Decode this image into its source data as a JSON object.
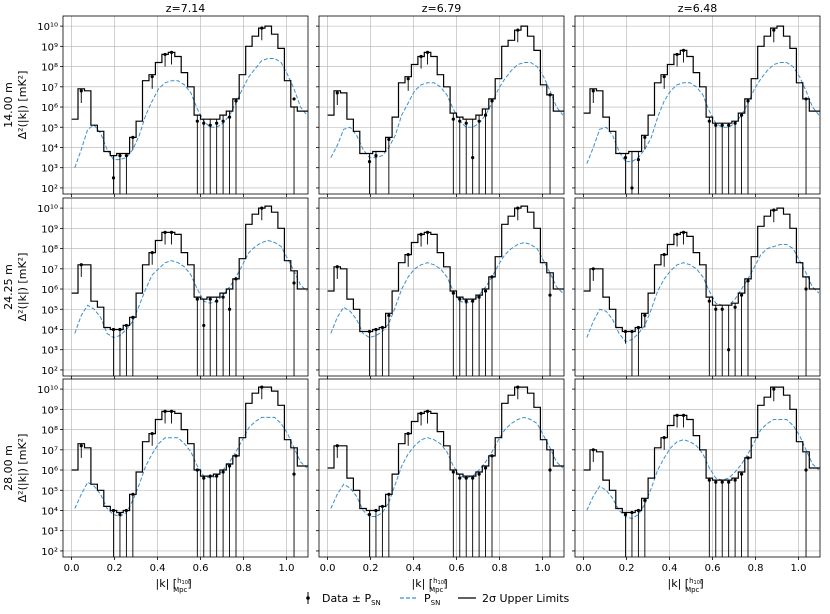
{
  "legend": {
    "items": [
      {
        "label": "Data ± P",
        "sub": "SN",
        "marker": "errorbar-point",
        "color": "#000000"
      },
      {
        "label": "P",
        "sub": "SN",
        "marker": "dashed-line",
        "color": "#3a8fd1"
      },
      {
        "label": "2σ Upper Limits",
        "sub": "",
        "marker": "solid-line",
        "color": "#000000"
      }
    ]
  },
  "chart_data": {
    "type": "line",
    "layout": "grid 3x3",
    "columns": [
      "z=7.14",
      "z=6.79",
      "z=6.48"
    ],
    "rows": [
      "14.00 m",
      "24.25 m",
      "28.00 m"
    ],
    "ylabel": "Δ²(|k|) [mK²]",
    "xlabel": "|k| [h100/Mpc]",
    "xlabel_main": "|k| [",
    "xlabel_num": "h",
    "xlabel_num_sub": "100",
    "xlabel_den": "Mpc",
    "xlabel_close": "]",
    "xlim": [
      -0.04,
      1.1
    ],
    "ylim_log10": [
      1.7,
      10.5
    ],
    "yscale": "log",
    "grid": true,
    "legend_position": "bottom-center",
    "xticks": [
      "0.0",
      "0.2",
      "0.4",
      "0.6",
      "0.8",
      "1.0"
    ],
    "yticks": [
      "10²",
      "10³",
      "10⁴",
      "10⁵",
      "10⁶",
      "10⁷",
      "10⁸",
      "10⁹",
      "10¹⁰"
    ],
    "colors": {
      "upper_limits": "#000000",
      "noise": "#3a8fd1",
      "data": "#000000"
    },
    "k_bins": [
      0.0,
      0.03,
      0.06,
      0.09,
      0.12,
      0.15,
      0.18,
      0.21,
      0.24,
      0.27,
      0.3,
      0.33,
      0.36,
      0.39,
      0.42,
      0.45,
      0.48,
      0.51,
      0.54,
      0.57,
      0.6,
      0.63,
      0.66,
      0.69,
      0.72,
      0.75,
      0.78,
      0.81,
      0.84,
      0.87,
      0.9,
      0.93,
      0.96,
      0.99,
      1.02,
      1.05,
      1.08
    ],
    "panels": [
      {
        "row": 0,
        "col": 0,
        "upper_limits_log10": [
          5.4,
          6.9,
          6.8,
          5.1,
          4.8,
          3.8,
          3.6,
          3.7,
          3.7,
          4.5,
          5.3,
          7.3,
          7.6,
          8.2,
          8.6,
          8.7,
          8.5,
          7.7,
          7.0,
          5.6,
          5.4,
          5.4,
          5.4,
          5.6,
          5.8,
          6.4,
          7.6,
          9.0,
          9.5,
          9.9,
          10.0,
          9.6,
          8.9,
          7.3,
          6.0,
          5.8,
          5.8
        ],
        "noise_log10": [
          3.0,
          3.9,
          4.9,
          5.1,
          4.7,
          3.9,
          3.4,
          3.4,
          3.5,
          3.9,
          4.6,
          5.6,
          6.3,
          6.9,
          7.2,
          7.3,
          7.3,
          7.1,
          6.7,
          5.9,
          5.3,
          5.0,
          5.0,
          5.2,
          5.6,
          6.2,
          6.9,
          7.5,
          7.9,
          8.3,
          8.4,
          8.4,
          8.2,
          7.6,
          6.9,
          6.0,
          5.6
        ],
        "data_log10": [
          null,
          6.8,
          null,
          null,
          null,
          null,
          2.5,
          3.6,
          3.6,
          4.5,
          null,
          null,
          7.5,
          null,
          8.6,
          8.7,
          null,
          null,
          null,
          5.3,
          5.2,
          5.1,
          5.2,
          5.3,
          5.5,
          6.3,
          null,
          null,
          null,
          9.9,
          null,
          null,
          null,
          null,
          6.4,
          null,
          null
        ]
      },
      {
        "row": 0,
        "col": 1,
        "upper_limits_log10": [
          5.6,
          6.8,
          6.7,
          5.4,
          4.8,
          3.7,
          3.7,
          3.8,
          3.8,
          4.5,
          5.5,
          7.2,
          7.5,
          8.1,
          8.5,
          8.7,
          8.5,
          7.6,
          7.0,
          5.7,
          5.5,
          5.4,
          5.4,
          5.6,
          5.9,
          6.4,
          7.4,
          9.0,
          9.3,
          9.8,
          10.0,
          9.5,
          8.8,
          7.1,
          6.6,
          5.8,
          5.8
        ],
        "noise_log10": [
          3.5,
          4.1,
          4.9,
          5.0,
          4.6,
          3.9,
          3.5,
          3.5,
          3.6,
          4.0,
          4.6,
          5.6,
          6.2,
          6.8,
          7.1,
          7.2,
          7.2,
          7.0,
          6.6,
          5.9,
          5.3,
          5.0,
          5.0,
          5.2,
          5.6,
          6.2,
          6.9,
          7.4,
          7.8,
          8.1,
          8.2,
          8.2,
          8.0,
          7.5,
          6.8,
          6.0,
          5.6
        ],
        "data_log10": [
          null,
          6.7,
          null,
          null,
          null,
          null,
          3.3,
          3.6,
          null,
          4.4,
          null,
          null,
          7.4,
          null,
          8.5,
          8.7,
          null,
          null,
          null,
          5.4,
          5.3,
          5.2,
          3.5,
          5.3,
          5.6,
          6.3,
          null,
          null,
          null,
          9.8,
          null,
          null,
          null,
          null,
          6.6,
          null,
          null
        ]
      },
      {
        "row": 0,
        "col": 2,
        "upper_limits_log10": [
          5.7,
          6.9,
          6.8,
          5.5,
          4.8,
          3.7,
          3.7,
          3.8,
          3.8,
          4.6,
          5.6,
          7.2,
          7.6,
          8.1,
          8.6,
          8.8,
          8.5,
          7.7,
          7.0,
          5.5,
          5.2,
          5.2,
          5.2,
          5.3,
          5.7,
          6.4,
          7.4,
          9.0,
          9.5,
          9.9,
          10.0,
          9.5,
          8.9,
          7.2,
          6.4,
          5.8,
          5.8
        ],
        "noise_log10": [
          3.2,
          4.0,
          4.9,
          5.0,
          4.6,
          3.8,
          3.3,
          3.3,
          3.5,
          3.9,
          4.5,
          5.5,
          6.3,
          6.8,
          7.1,
          7.2,
          7.2,
          7.0,
          6.6,
          5.8,
          5.2,
          5.0,
          5.0,
          5.2,
          5.6,
          6.2,
          6.9,
          7.4,
          7.8,
          8.1,
          8.2,
          8.2,
          8.0,
          7.5,
          6.8,
          6.0,
          5.6
        ],
        "data_log10": [
          null,
          6.8,
          null,
          null,
          null,
          null,
          3.5,
          2.0,
          3.4,
          4.5,
          null,
          null,
          7.5,
          null,
          8.6,
          8.8,
          null,
          null,
          null,
          5.3,
          5.1,
          5.1,
          5.1,
          5.2,
          5.6,
          6.3,
          null,
          null,
          null,
          9.8,
          null,
          null,
          null,
          null,
          6.4,
          null,
          null
        ]
      },
      {
        "row": 1,
        "col": 0,
        "upper_limits_log10": [
          5.8,
          7.2,
          7.2,
          5.4,
          5.1,
          4.1,
          4.0,
          4.0,
          4.2,
          4.6,
          5.8,
          7.2,
          7.8,
          8.4,
          8.8,
          8.8,
          8.7,
          7.8,
          7.2,
          5.6,
          5.5,
          5.6,
          5.6,
          5.8,
          6.0,
          6.5,
          7.5,
          9.2,
          9.7,
          10.0,
          10.1,
          9.8,
          9.0,
          7.4,
          6.9,
          6.0,
          6.0
        ],
        "noise_log10": [
          3.8,
          4.7,
          5.2,
          5.0,
          4.6,
          3.8,
          3.6,
          3.7,
          4.0,
          4.4,
          5.2,
          6.0,
          6.7,
          7.0,
          7.3,
          7.4,
          7.3,
          7.1,
          6.7,
          6.0,
          5.4,
          5.3,
          5.4,
          5.7,
          6.1,
          6.6,
          7.2,
          7.8,
          8.1,
          8.3,
          8.4,
          8.3,
          8.1,
          7.5,
          6.9,
          6.2,
          5.9
        ],
        "data_log10": [
          null,
          7.2,
          null,
          null,
          null,
          null,
          4.0,
          4.0,
          4.2,
          4.6,
          null,
          null,
          7.8,
          null,
          8.8,
          8.8,
          null,
          null,
          null,
          5.5,
          4.2,
          5.5,
          5.4,
          5.6,
          5.0,
          6.5,
          null,
          null,
          null,
          10.0,
          null,
          null,
          null,
          null,
          6.3,
          null,
          null
        ]
      },
      {
        "row": 1,
        "col": 1,
        "upper_limits_log10": [
          5.9,
          7.1,
          7.0,
          5.5,
          5.0,
          3.9,
          3.9,
          4.0,
          4.1,
          4.8,
          5.9,
          7.3,
          7.7,
          8.3,
          8.7,
          8.8,
          8.7,
          7.8,
          7.1,
          5.9,
          5.6,
          5.5,
          5.5,
          5.7,
          6.0,
          6.6,
          7.6,
          9.2,
          9.6,
          10.0,
          10.1,
          9.8,
          9.0,
          7.3,
          6.8,
          6.0,
          6.0
        ],
        "noise_log10": [
          3.8,
          4.6,
          5.1,
          4.9,
          4.5,
          3.8,
          3.6,
          3.7,
          3.9,
          4.3,
          5.1,
          6.0,
          6.6,
          7.0,
          7.2,
          7.3,
          7.2,
          7.0,
          6.6,
          5.9,
          5.4,
          5.3,
          5.4,
          5.7,
          6.1,
          6.6,
          7.2,
          7.7,
          8.0,
          8.2,
          8.3,
          8.2,
          8.0,
          7.4,
          6.8,
          6.1,
          5.8
        ],
        "data_log10": [
          null,
          7.1,
          null,
          null,
          null,
          null,
          3.9,
          4.0,
          4.1,
          4.7,
          null,
          null,
          7.7,
          null,
          8.7,
          8.8,
          null,
          null,
          null,
          5.8,
          5.5,
          5.4,
          5.4,
          5.6,
          5.9,
          6.6,
          null,
          null,
          null,
          10.0,
          null,
          null,
          null,
          null,
          5.7,
          null,
          null
        ]
      },
      {
        "row": 1,
        "col": 2,
        "upper_limits_log10": [
          5.9,
          7.0,
          7.0,
          5.6,
          5.0,
          4.1,
          3.9,
          3.9,
          4.1,
          4.8,
          5.8,
          7.2,
          7.7,
          8.2,
          8.7,
          8.8,
          8.6,
          7.8,
          7.2,
          5.6,
          5.2,
          5.2,
          5.2,
          5.3,
          5.8,
          6.5,
          7.6,
          9.1,
          9.6,
          9.9,
          10.0,
          9.7,
          9.0,
          7.3,
          6.6,
          6.0,
          6.0
        ],
        "noise_log10": [
          3.6,
          4.4,
          5.0,
          4.9,
          4.5,
          3.8,
          3.4,
          3.5,
          3.8,
          4.2,
          5.0,
          5.9,
          6.5,
          6.9,
          7.2,
          7.3,
          7.2,
          7.0,
          6.6,
          5.9,
          5.3,
          5.2,
          5.2,
          5.5,
          6.0,
          6.5,
          7.1,
          7.7,
          8.0,
          8.1,
          8.2,
          8.2,
          8.0,
          7.4,
          6.8,
          6.1,
          5.8
        ],
        "data_log10": [
          null,
          7.0,
          null,
          null,
          null,
          null,
          3.9,
          3.9,
          4.1,
          4.7,
          null,
          null,
          7.7,
          null,
          8.7,
          8.8,
          null,
          null,
          null,
          5.4,
          5.0,
          5.0,
          3.0,
          5.1,
          5.7,
          6.4,
          null,
          null,
          null,
          9.9,
          null,
          null,
          null,
          null,
          6.0,
          null,
          null
        ]
      },
      {
        "row": 2,
        "col": 0,
        "upper_limits_log10": [
          6.0,
          7.3,
          7.1,
          5.3,
          5.0,
          4.2,
          4.0,
          3.9,
          4.0,
          4.8,
          5.9,
          7.4,
          7.8,
          8.5,
          8.9,
          8.9,
          8.8,
          8.0,
          7.3,
          6.0,
          5.7,
          5.7,
          5.8,
          6.0,
          6.3,
          6.7,
          7.6,
          9.3,
          9.8,
          10.1,
          10.1,
          9.9,
          9.2,
          7.5,
          7.1,
          6.2,
          6.2
        ],
        "noise_log10": [
          4.1,
          4.8,
          5.4,
          5.2,
          4.8,
          4.1,
          3.8,
          3.7,
          3.9,
          4.5,
          5.3,
          6.2,
          6.8,
          7.3,
          7.6,
          7.6,
          7.6,
          7.3,
          6.9,
          6.2,
          5.7,
          5.6,
          5.7,
          6.0,
          6.4,
          6.9,
          7.5,
          8.1,
          8.4,
          8.6,
          8.6,
          8.6,
          8.3,
          7.8,
          7.1,
          6.4,
          6.1
        ],
        "data_log10": [
          null,
          7.2,
          null,
          null,
          null,
          null,
          4.0,
          3.8,
          4.0,
          4.8,
          null,
          null,
          7.8,
          null,
          8.9,
          8.9,
          null,
          null,
          null,
          6.0,
          5.6,
          5.7,
          5.7,
          5.9,
          6.2,
          6.7,
          null,
          null,
          null,
          10.1,
          null,
          null,
          null,
          null,
          5.8,
          null,
          null
        ]
      },
      {
        "row": 2,
        "col": 1,
        "upper_limits_log10": [
          6.1,
          7.2,
          7.2,
          5.6,
          5.0,
          4.1,
          4.0,
          4.0,
          4.2,
          4.8,
          5.8,
          7.3,
          7.8,
          8.4,
          8.8,
          8.9,
          8.8,
          7.9,
          7.2,
          6.0,
          5.8,
          5.7,
          5.7,
          5.9,
          6.2,
          6.7,
          7.6,
          9.3,
          9.7,
          10.1,
          10.1,
          9.8,
          9.1,
          7.5,
          7.0,
          6.2,
          6.2
        ],
        "noise_log10": [
          4.1,
          4.8,
          5.3,
          5.1,
          4.7,
          4.0,
          3.7,
          3.7,
          3.9,
          4.4,
          5.3,
          6.2,
          6.8,
          7.2,
          7.5,
          7.6,
          7.5,
          7.3,
          6.9,
          6.2,
          5.7,
          5.6,
          5.7,
          6.0,
          6.4,
          6.9,
          7.5,
          8.0,
          8.3,
          8.5,
          8.6,
          8.5,
          8.3,
          7.7,
          7.1,
          6.4,
          6.1
        ],
        "data_log10": [
          null,
          7.2,
          null,
          null,
          null,
          null,
          3.8,
          4.0,
          4.2,
          4.8,
          null,
          null,
          7.8,
          null,
          8.8,
          8.9,
          null,
          null,
          null,
          5.9,
          5.6,
          5.6,
          5.6,
          5.8,
          6.1,
          6.7,
          null,
          null,
          null,
          10.1,
          null,
          null,
          null,
          null,
          6.0,
          null,
          null
        ]
      },
      {
        "row": 2,
        "col": 2,
        "upper_limits_log10": [
          6.0,
          7.0,
          6.9,
          5.5,
          5.0,
          4.1,
          3.9,
          3.9,
          4.0,
          4.6,
          5.6,
          7.1,
          7.6,
          8.2,
          8.7,
          8.7,
          8.5,
          7.7,
          7.0,
          5.6,
          5.5,
          5.5,
          5.5,
          5.6,
          5.9,
          6.6,
          7.6,
          9.2,
          9.6,
          10.1,
          10.1,
          9.7,
          9.0,
          7.4,
          6.9,
          6.1,
          6.1
        ],
        "noise_log10": [
          4.0,
          4.7,
          5.2,
          5.0,
          4.6,
          4.0,
          3.7,
          3.6,
          3.8,
          4.3,
          5.1,
          6.0,
          6.6,
          7.1,
          7.4,
          7.5,
          7.4,
          7.2,
          6.8,
          6.1,
          5.6,
          5.5,
          5.6,
          5.9,
          6.3,
          6.8,
          7.4,
          8.0,
          8.3,
          8.5,
          8.5,
          8.5,
          8.2,
          7.7,
          7.0,
          6.3,
          6.0
        ],
        "data_log10": [
          null,
          7.0,
          null,
          null,
          null,
          null,
          3.8,
          3.9,
          4.0,
          4.5,
          null,
          null,
          7.6,
          null,
          8.7,
          8.7,
          null,
          null,
          null,
          5.5,
          5.4,
          5.4,
          5.4,
          5.5,
          5.8,
          6.6,
          null,
          null,
          null,
          10.0,
          null,
          null,
          null,
          null,
          6.0,
          null,
          null
        ]
      }
    ]
  }
}
